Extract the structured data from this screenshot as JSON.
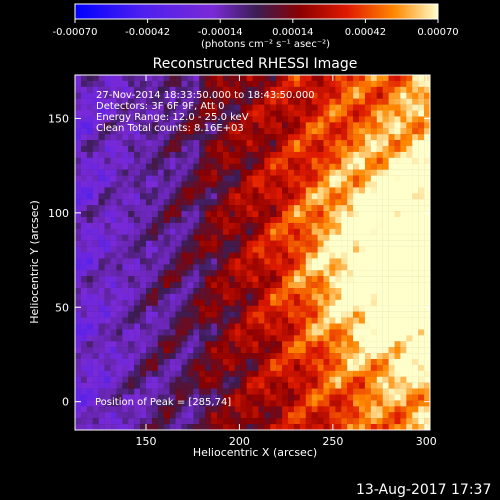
{
  "chart_data": {
    "type": "heatmap",
    "title": "Reconstructed RHESSI Image",
    "xlabel": "Heliocentric X (arcsec)",
    "ylabel": "Heliocentric Y (arcsec)",
    "xlim": [
      112,
      302
    ],
    "ylim": [
      -15,
      173
    ],
    "x_ticks": [
      150,
      200,
      250,
      300
    ],
    "y_ticks": [
      0,
      50,
      100,
      150
    ],
    "x_tick_labels": [
      "150",
      "200",
      "250",
      "300"
    ],
    "y_tick_labels": [
      "0",
      "50",
      "100",
      "150"
    ],
    "colorbar": {
      "min": -0.0007,
      "max": 0.0007,
      "tick_labels": [
        "-0.00070",
        "-0.00042",
        "-0.00014",
        "0.00014",
        "0.00042",
        "0.00070"
      ],
      "label": "(photons cm⁻² s⁻¹ asec⁻²)"
    },
    "annotations": [
      "27-Nov-2014 18:33:50.000 to 18:43:50.000",
      "Detectors: 3F 6F 9F, Att 0",
      "Energy Range: 12.0 - 25.0 keV",
      "Clean     Total counts: 8.16E+03"
    ],
    "peak_note": "Position of Peak = [285,74]",
    "peak": [
      285,
      74
    ]
  },
  "footer": {
    "timestamp": "13-Aug-2017 17:37"
  },
  "colors": {
    "background": "#000000",
    "foreground": "#ffffff"
  }
}
